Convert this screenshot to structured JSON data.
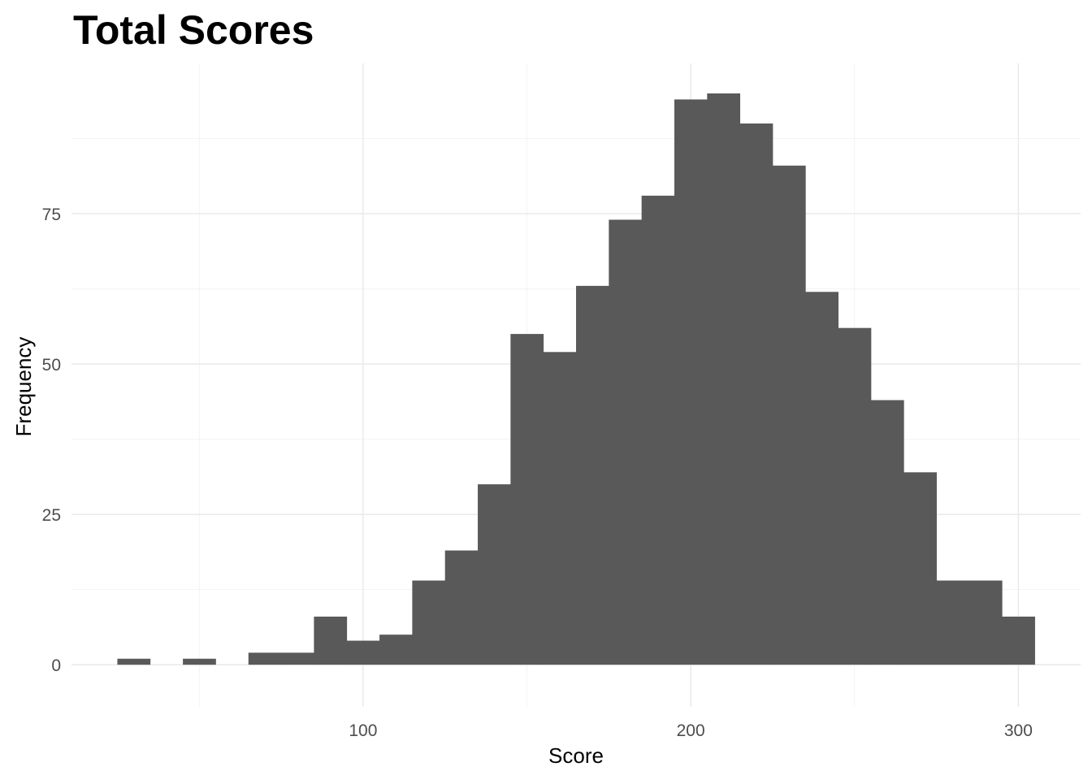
{
  "chart_data": {
    "type": "bar",
    "subtype": "histogram",
    "title": "Total Scores",
    "xlabel": "Score",
    "ylabel": "Frequency",
    "xlim": [
      11,
      319
    ],
    "ylim": [
      -7,
      100
    ],
    "x_ticks": [
      100,
      200,
      300
    ],
    "x_minor_ticks": [
      50,
      150,
      250
    ],
    "y_ticks": [
      0,
      25,
      50,
      75
    ],
    "y_minor_ticks": [
      12.5,
      37.5,
      62.5,
      87.5
    ],
    "grid": true,
    "legend": "none",
    "bar_color": "#595959",
    "bin_width": 10,
    "bins": [
      {
        "start": 25,
        "end": 35,
        "count": 1
      },
      {
        "start": 35,
        "end": 45,
        "count": 0
      },
      {
        "start": 45,
        "end": 55,
        "count": 1
      },
      {
        "start": 55,
        "end": 65,
        "count": 0
      },
      {
        "start": 65,
        "end": 75,
        "count": 2
      },
      {
        "start": 75,
        "end": 85,
        "count": 2
      },
      {
        "start": 85,
        "end": 95,
        "count": 8
      },
      {
        "start": 95,
        "end": 105,
        "count": 4
      },
      {
        "start": 105,
        "end": 115,
        "count": 5
      },
      {
        "start": 115,
        "end": 125,
        "count": 14
      },
      {
        "start": 125,
        "end": 135,
        "count": 19
      },
      {
        "start": 135,
        "end": 145,
        "count": 30
      },
      {
        "start": 145,
        "end": 155,
        "count": 55
      },
      {
        "start": 155,
        "end": 165,
        "count": 52
      },
      {
        "start": 165,
        "end": 175,
        "count": 63
      },
      {
        "start": 175,
        "end": 185,
        "count": 74
      },
      {
        "start": 185,
        "end": 195,
        "count": 78
      },
      {
        "start": 195,
        "end": 205,
        "count": 94
      },
      {
        "start": 205,
        "end": 215,
        "count": 95
      },
      {
        "start": 215,
        "end": 225,
        "count": 90
      },
      {
        "start": 225,
        "end": 235,
        "count": 83
      },
      {
        "start": 235,
        "end": 245,
        "count": 62
      },
      {
        "start": 245,
        "end": 255,
        "count": 56
      },
      {
        "start": 255,
        "end": 265,
        "count": 44
      },
      {
        "start": 265,
        "end": 275,
        "count": 32
      },
      {
        "start": 275,
        "end": 285,
        "count": 14
      },
      {
        "start": 285,
        "end": 295,
        "count": 14
      },
      {
        "start": 295,
        "end": 305,
        "count": 8
      }
    ]
  }
}
